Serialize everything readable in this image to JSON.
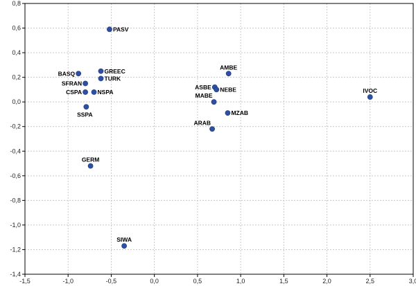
{
  "chart_data": {
    "type": "scatter",
    "title": "",
    "xlabel": "",
    "ylabel": "",
    "xlim": [
      -1.5,
      3.0
    ],
    "ylim": [
      -1.4,
      0.8
    ],
    "xticks": [
      -1.5,
      -1.0,
      -0.5,
      0.0,
      0.5,
      1.0,
      1.5,
      2.0,
      2.5,
      3.0
    ],
    "yticks": [
      -1.4,
      -1.2,
      -1.0,
      -0.8,
      -0.6,
      -0.4,
      -0.2,
      0.0,
      0.2,
      0.4,
      0.6,
      0.8
    ],
    "xtick_labels": [
      "-1,5",
      "-1,0",
      "-0,5",
      "0,0",
      "0,5",
      "1,0",
      "1,5",
      "2,0",
      "2,5",
      "3,0"
    ],
    "ytick_labels": [
      "-1,4",
      "-1,2",
      "-1,0",
      "-0,8",
      "-0,6",
      "-0,4",
      "-0,2",
      "0,0",
      "0,2",
      "0,4",
      "0,6",
      "0,8"
    ],
    "grid": true,
    "marker_color": "#2f4fa2",
    "points": [
      {
        "label": "PASV",
        "x": -0.52,
        "y": 0.59,
        "label_pos": "right"
      },
      {
        "label": "BASQ",
        "x": -0.88,
        "y": 0.23,
        "label_pos": "left"
      },
      {
        "label": "GREEC",
        "x": -0.62,
        "y": 0.25,
        "label_pos": "right"
      },
      {
        "label": "SFRAN",
        "x": -0.8,
        "y": 0.15,
        "label_pos": "left"
      },
      {
        "label": "TURK",
        "x": -0.62,
        "y": 0.19,
        "label_pos": "right"
      },
      {
        "label": "CSPA",
        "x": -0.8,
        "y": 0.08,
        "label_pos": "left"
      },
      {
        "label": "NSPA",
        "x": -0.7,
        "y": 0.08,
        "label_pos": "right"
      },
      {
        "label": "SSPA",
        "x": -0.79,
        "y": -0.04,
        "label_pos": "below"
      },
      {
        "label": "GERM",
        "x": -0.74,
        "y": -0.52,
        "label_pos": "above"
      },
      {
        "label": "SIWA",
        "x": -0.35,
        "y": -1.17,
        "label_pos": "above"
      },
      {
        "label": "AMBE",
        "x": 0.86,
        "y": 0.23,
        "label_pos": "above"
      },
      {
        "label": "ASBE",
        "x": 0.7,
        "y": 0.12,
        "label_pos": "left"
      },
      {
        "label": "NEBE",
        "x": 0.72,
        "y": 0.1,
        "label_pos": "right"
      },
      {
        "label": "MABE",
        "x": 0.69,
        "y": 0.0,
        "label_pos": "left-above"
      },
      {
        "label": "MZAB",
        "x": 0.85,
        "y": -0.09,
        "label_pos": "right"
      },
      {
        "label": "ARAB",
        "x": 0.67,
        "y": -0.22,
        "label_pos": "left-above"
      },
      {
        "label": "IVOC",
        "x": 2.5,
        "y": 0.04,
        "label_pos": "above"
      }
    ]
  }
}
